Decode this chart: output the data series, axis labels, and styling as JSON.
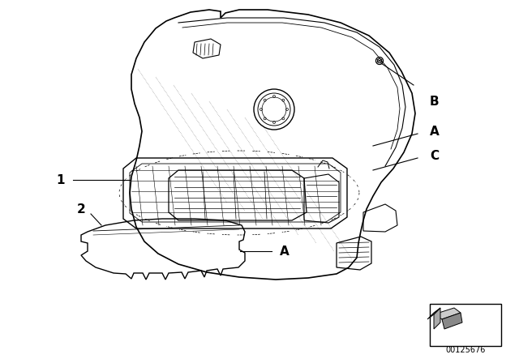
{
  "background_color": "#ffffff",
  "line_color": "#000000",
  "label_1": "1",
  "label_2": "2",
  "label_A_upper": "A",
  "label_B": "B",
  "label_A_lower": "A",
  "label_C": "C",
  "part_number": "00125676",
  "fig_width": 6.4,
  "fig_height": 4.48,
  "dpi": 100
}
